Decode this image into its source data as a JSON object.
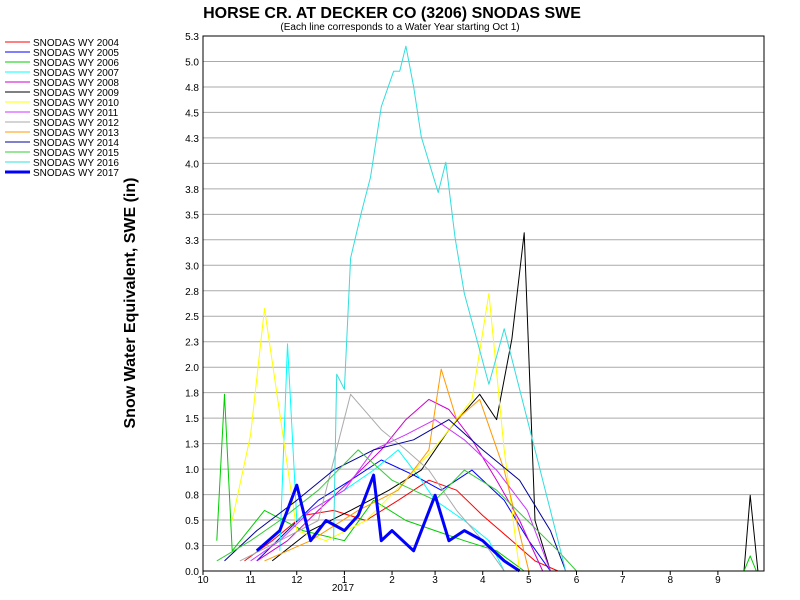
{
  "chart_data": {
    "type": "line",
    "title": "HORSE CR. AT DECKER CO (3206) SNODAS SWE",
    "subtitle": "(Each line corresponds to a Water Year starting Oct 1)",
    "ylabel": "Snow Water Equivalent, SWE (in)",
    "xlabel": "",
    "x_tick_labels": [
      "10",
      "11",
      "12",
      "1",
      "2",
      "3",
      "4",
      "5",
      "6",
      "7",
      "8",
      "9"
    ],
    "x_year_label": "2017",
    "y_tick_labels": [
      "0.0",
      "0.3",
      "0.5",
      "0.8",
      "1.0",
      "1.3",
      "1.5",
      "1.8",
      "2.0",
      "2.3",
      "2.5",
      "2.8",
      "3.0",
      "3.3",
      "3.5",
      "3.8",
      "4.0",
      "4.3",
      "4.5",
      "4.8",
      "5.0",
      "5.3"
    ],
    "ylim": [
      0,
      5.3
    ],
    "xlim": [
      "Oct 1",
      "Sep 30"
    ],
    "grid": "horizontal",
    "legend_position": "left",
    "series": [
      {
        "name": "SNODAS WY 2004",
        "color": "#ff0000",
        "dates": [
          "10-28",
          "11-15",
          "12-05",
          "12-25",
          "01-15",
          "02-05",
          "02-25",
          "03-15",
          "04-01",
          "04-20",
          "05-05",
          "05-20"
        ],
        "values": [
          0.1,
          0.3,
          0.55,
          0.6,
          0.5,
          0.7,
          0.9,
          0.8,
          0.55,
          0.3,
          0.1,
          0.0
        ]
      },
      {
        "name": "SNODAS WY 2005",
        "color": "#0000ff",
        "dates": [
          "11-05",
          "11-25",
          "12-15",
          "01-05",
          "01-25",
          "02-15",
          "03-05",
          "03-25",
          "04-15",
          "05-01",
          "05-15"
        ],
        "values": [
          0.1,
          0.4,
          0.7,
          0.9,
          1.1,
          0.95,
          0.8,
          1.0,
          0.7,
          0.3,
          0.0
        ]
      },
      {
        "name": "SNODAS WY 2006",
        "color": "#00cc00",
        "dates": [
          "10-10",
          "10-15",
          "10-20",
          "11-10",
          "12-05",
          "01-01",
          "01-20",
          "02-10",
          "03-01",
          "03-20",
          "04-10",
          "04-28"
        ],
        "values": [
          0.3,
          1.75,
          0.2,
          0.6,
          0.4,
          0.3,
          0.7,
          0.5,
          0.4,
          0.3,
          0.2,
          0.0
        ]
      },
      {
        "name": "SNODAS WY 2007",
        "color": "#00ffff",
        "dates": [
          "11-20",
          "11-25",
          "12-01",
          "12-10",
          "01-01",
          "01-20",
          "02-05",
          "02-20",
          "03-01",
          "03-20",
          "04-05",
          "04-15"
        ],
        "values": [
          0.2,
          2.25,
          0.5,
          0.6,
          0.8,
          1.0,
          1.2,
          0.9,
          0.7,
          0.5,
          0.3,
          0.0
        ]
      },
      {
        "name": "SNODAS WY 2008",
        "color": "#cc00cc",
        "dates": [
          "11-05",
          "11-25",
          "12-15",
          "01-05",
          "01-25",
          "02-10",
          "02-25",
          "03-10",
          "03-25",
          "04-10",
          "04-25",
          "05-10"
        ],
        "values": [
          0.1,
          0.3,
          0.6,
          0.9,
          1.2,
          1.5,
          1.7,
          1.6,
          1.3,
          0.9,
          0.5,
          0.0
        ]
      },
      {
        "name": "SNODAS WY 2009",
        "color": "#000000",
        "dates": [
          "11-15",
          "12-10",
          "01-05",
          "01-30",
          "02-20",
          "03-10",
          "03-30",
          "04-10",
          "04-20",
          "04-28",
          "05-05",
          "05-15"
        ],
        "values": [
          0.1,
          0.4,
          0.6,
          0.8,
          1.0,
          1.4,
          1.75,
          1.5,
          2.3,
          3.35,
          0.5,
          0.0
        ]
      },
      {
        "name": "SNODAS WY 2010",
        "color": "#ffff00",
        "dates": [
          "10-20",
          "11-01",
          "11-10",
          "12-01",
          "12-20",
          "01-15",
          "02-10",
          "03-05",
          "03-25",
          "04-05",
          "04-15",
          "04-25"
        ],
        "values": [
          0.5,
          1.35,
          2.6,
          0.4,
          0.3,
          0.5,
          0.9,
          1.3,
          1.7,
          2.75,
          1.2,
          0.0
        ]
      },
      {
        "name": "SNODAS WY 2011",
        "color": "#cc33ff",
        "dates": [
          "11-01",
          "11-20",
          "12-10",
          "01-01",
          "01-20",
          "02-10",
          "03-01",
          "03-20",
          "04-10",
          "04-30",
          "05-15"
        ],
        "values": [
          0.1,
          0.3,
          0.6,
          0.8,
          1.2,
          1.35,
          1.5,
          1.3,
          1.0,
          0.6,
          0.0
        ]
      },
      {
        "name": "SNODAS WY 2012",
        "color": "#aaaaaa",
        "dates": [
          "10-25",
          "11-20",
          "12-15",
          "01-05",
          "01-25",
          "02-10",
          "02-25",
          "03-15",
          "04-01",
          "04-15"
        ],
        "values": [
          0.1,
          0.3,
          0.5,
          1.75,
          1.4,
          1.2,
          1.0,
          0.6,
          0.3,
          0.0
        ]
      },
      {
        "name": "SNODAS WY 2013",
        "color": "#ff9900",
        "dates": [
          "11-10",
          "12-10",
          "01-10",
          "02-05",
          "02-25",
          "03-05",
          "03-15",
          "03-30",
          "04-15",
          "05-01"
        ],
        "values": [
          0.1,
          0.3,
          0.6,
          0.8,
          1.2,
          2.0,
          1.5,
          1.7,
          1.0,
          0.0
        ]
      },
      {
        "name": "SNODAS WY 2014",
        "color": "#000099",
        "dates": [
          "10-15",
          "11-05",
          "12-01",
          "12-25",
          "01-20",
          "02-15",
          "03-10",
          "04-01",
          "04-25",
          "05-15",
          "05-25"
        ],
        "values": [
          0.1,
          0.4,
          0.7,
          1.0,
          1.2,
          1.3,
          1.5,
          1.2,
          0.9,
          0.4,
          0.0
        ]
      },
      {
        "name": "SNODAS WY 2015",
        "color": "#33cc33",
        "dates": [
          "10-10",
          "11-01",
          "11-20",
          "12-15",
          "01-10",
          "02-01",
          "03-01",
          "03-20",
          "04-10",
          "04-30",
          "05-20",
          "06-01"
        ],
        "values": [
          0.1,
          0.3,
          0.5,
          0.8,
          1.2,
          0.9,
          0.7,
          1.0,
          0.8,
          0.5,
          0.2,
          0.0
        ]
      },
      {
        "name": "SNODAS WY 2016",
        "color": "#33dddd",
        "dates": [
          "12-25",
          "12-27",
          "01-01",
          "01-05",
          "01-12",
          "01-18",
          "01-25",
          "02-02",
          "02-06",
          "02-10",
          "02-15",
          "02-20",
          "02-26",
          "03-03",
          "03-08",
          "03-14",
          "03-20",
          "03-28",
          "04-05",
          "04-15",
          "04-25",
          "05-05",
          "05-15",
          "05-25"
        ],
        "values": [
          0.3,
          1.95,
          1.8,
          3.1,
          3.55,
          3.9,
          4.6,
          4.95,
          4.95,
          5.2,
          4.8,
          4.3,
          4.0,
          3.75,
          4.05,
          3.3,
          2.75,
          2.3,
          1.85,
          2.4,
          1.8,
          1.2,
          0.6,
          0.0
        ]
      },
      {
        "name": "SNODAS WY 2017",
        "color": "#0000ff",
        "bold": true,
        "dates": [
          "11-05",
          "11-20",
          "12-01",
          "12-10",
          "12-20",
          "01-01",
          "01-10",
          "01-20",
          "01-25",
          "02-01",
          "02-15",
          "03-01",
          "03-10",
          "03-20",
          "04-01",
          "04-15",
          "04-25"
        ],
        "values": [
          0.2,
          0.4,
          0.85,
          0.3,
          0.5,
          0.4,
          0.55,
          0.95,
          0.3,
          0.4,
          0.2,
          0.75,
          0.3,
          0.4,
          0.3,
          0.1,
          0.0
        ]
      }
    ],
    "extra_segments": [
      {
        "color": "#000000",
        "dates": [
          "09-18",
          "09-22",
          "09-27"
        ],
        "values": [
          0.0,
          0.75,
          0.0
        ]
      },
      {
        "color": "#00cc00",
        "dates": [
          "09-18",
          "09-22",
          "09-26"
        ],
        "values": [
          0.0,
          0.15,
          0.0
        ]
      }
    ]
  }
}
